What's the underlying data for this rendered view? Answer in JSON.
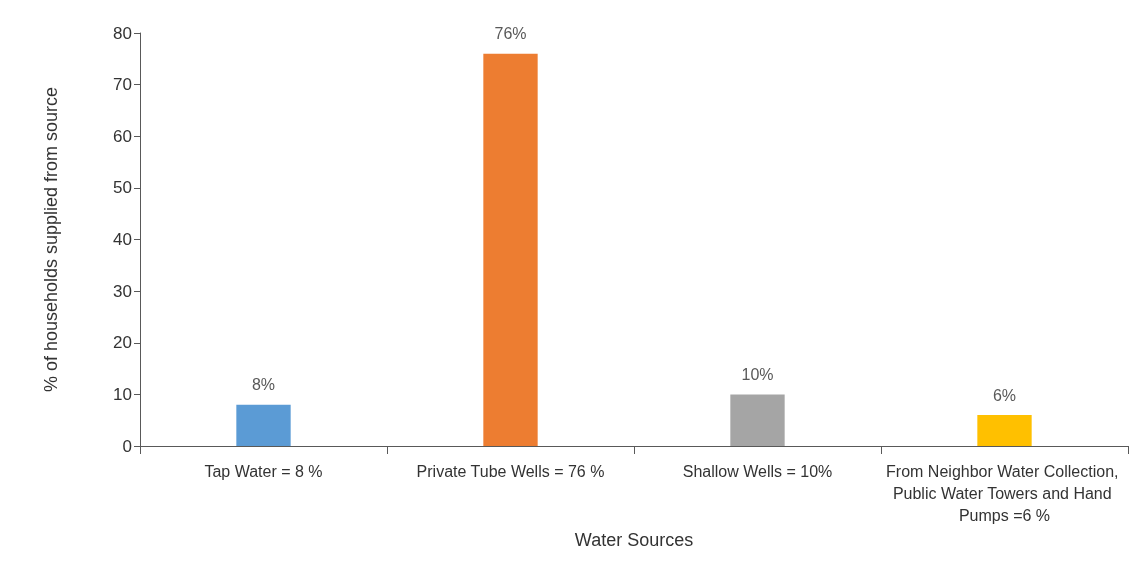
{
  "chart_data": {
    "type": "bar",
    "xlabel": "Water Sources",
    "ylabel": "% of households supplied from source",
    "categories": [
      "Tap Water = 8 %",
      "Private Tube Wells = 76 %",
      "Shallow Wells = 10%",
      "From Neighbor Water Collection, Public Water Towers and Hand Pumps =6 %"
    ],
    "values": [
      8,
      76,
      10,
      6
    ],
    "colors": [
      "#5b9bd5",
      "#ed7d31",
      "#a5a5a5",
      "#ffc000"
    ],
    "value_labels": [
      "8%",
      "76%",
      "10%",
      "6%"
    ],
    "ylim": [
      0,
      80
    ],
    "yticks": [
      0,
      10,
      20,
      30,
      40,
      50,
      60,
      70,
      80
    ],
    "grid": false
  }
}
